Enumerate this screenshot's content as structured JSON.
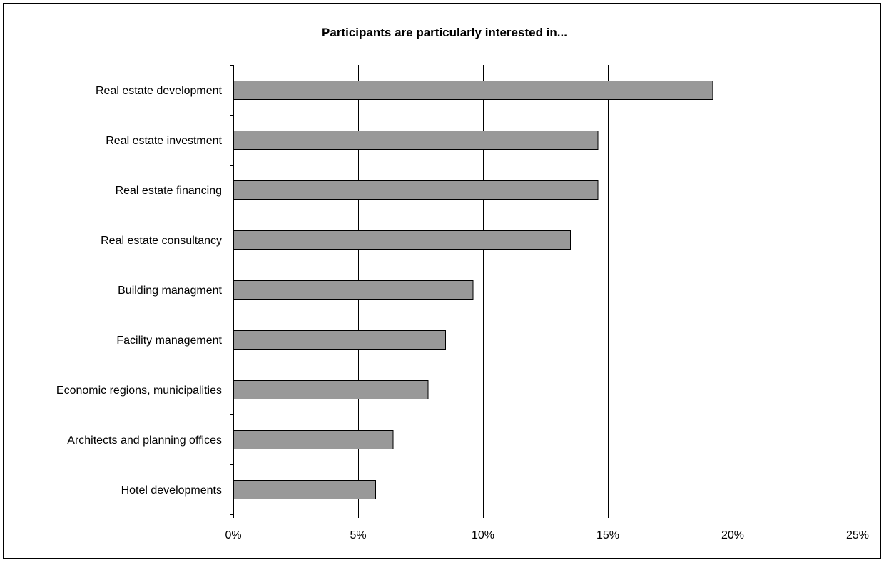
{
  "chart_data": {
    "type": "bar",
    "orientation": "horizontal",
    "title": "Participants are particularly interested in...",
    "categories": [
      "Real estate development",
      "Real estate investment",
      "Real estate financing",
      "Real estate consultancy",
      "Building managment",
      "Facility management",
      "Economic regions, municipalities",
      "Architects and planning offices",
      "Hotel developments"
    ],
    "values": [
      19.2,
      14.6,
      14.6,
      13.5,
      9.6,
      8.5,
      7.8,
      6.4,
      5.7
    ],
    "value_unit": "percent",
    "xlim": [
      0,
      25
    ],
    "xticks": [
      0,
      5,
      10,
      15,
      20,
      25
    ],
    "xtick_labels": [
      "0%",
      "5%",
      "10%",
      "15%",
      "20%",
      "25%"
    ],
    "xlabel": "",
    "ylabel": "",
    "grid": "vertical",
    "legend": "none",
    "bar_color": "#999999",
    "bar_edge_color": "#000000"
  }
}
